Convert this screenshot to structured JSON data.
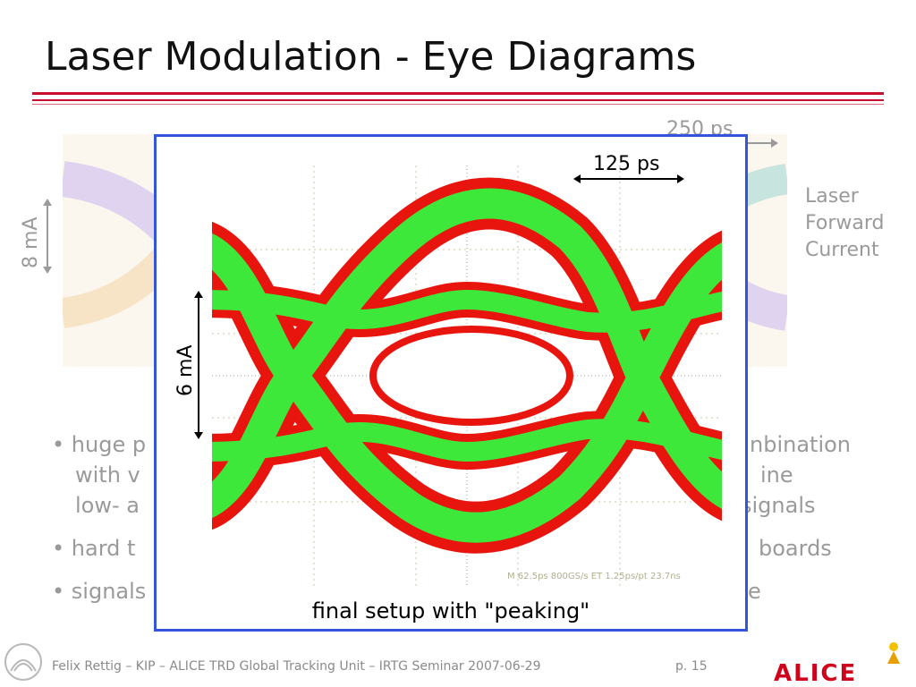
{
  "slide": {
    "title": "Laser Modulation - Eye Diagrams",
    "footer": "Felix Rettig – KIP – ALICE TRD Global Tracking Unit – IRTG Seminar 2007-06-29",
    "page": "p. 15",
    "logo_text": "ALICE"
  },
  "background_figure": {
    "time_label": "250 ps",
    "current_label": "8 mA",
    "side_label": [
      "Laser",
      "Forward",
      "Current"
    ]
  },
  "bullets": [
    {
      "left": "huge p",
      "right": "nbination"
    },
    {
      "left": "with v",
      "right": "ine"
    },
    {
      "left": "low- a",
      "right": "signals"
    },
    {
      "left": "hard t",
      "right": "boards"
    },
    {
      "left": "signals",
      "right": "e"
    }
  ],
  "overlay_figure": {
    "time_label": "125 ps",
    "current_label": "6 mA",
    "caption": "final setup with \"peaking\"",
    "scope_readout": "M 62.5ps 800GS/s    ET 1.25ps/pt 23.7ns",
    "colors": {
      "outer": "#e8150e",
      "inner": "#3ee83a",
      "border": "#3355dd"
    }
  }
}
